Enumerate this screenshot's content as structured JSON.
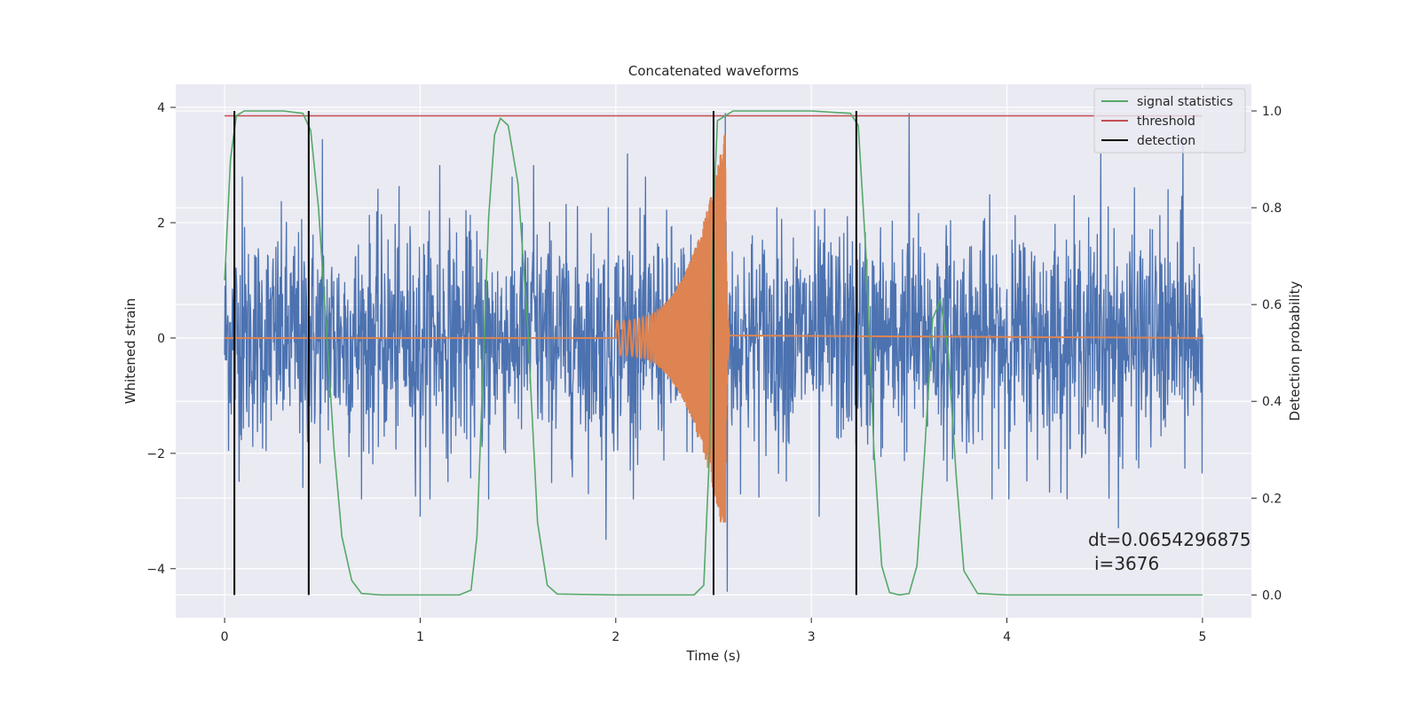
{
  "chart_data": {
    "type": "line",
    "title": "Concatenated waveforms",
    "xlabel": "Time (s)",
    "ylabel": "Whitened strain",
    "y2label": "Detection probability",
    "xlim": [
      -0.25,
      5.25
    ],
    "ylim": [
      -4.85,
      4.4
    ],
    "y2lim": [
      -0.047,
      1.055
    ],
    "xticks": [
      0,
      1,
      2,
      3,
      4,
      5
    ],
    "yticks": [
      -4,
      -2,
      0,
      2,
      4
    ],
    "y2ticks": [
      0.0,
      0.2,
      0.4,
      0.6,
      0.8,
      1.0
    ],
    "xtick_labels": [
      "0",
      "1",
      "2",
      "3",
      "4",
      "5"
    ],
    "ytick_labels": [
      "−4",
      "−2",
      "0",
      "2",
      "4"
    ],
    "y2tick_labels": [
      "0.0",
      "0.2",
      "0.4",
      "0.6",
      "0.8",
      "1.0"
    ],
    "grid": true,
    "legend_position": "top-right",
    "colors": {
      "background": "#eaeaf2",
      "grid": "#ffffff",
      "strain": "#4c72b0",
      "template": "#dd8452",
      "signal_statistics": "#55a868",
      "threshold": "#c44e52",
      "detection": "#000000"
    },
    "series": [
      {
        "name": "signal statistics",
        "axis": "right",
        "x": [
          0.0,
          0.03,
          0.06,
          0.1,
          0.2,
          0.3,
          0.4,
          0.44,
          0.48,
          0.52,
          0.56,
          0.6,
          0.65,
          0.7,
          0.8,
          1.0,
          1.2,
          1.26,
          1.29,
          1.32,
          1.35,
          1.38,
          1.41,
          1.45,
          1.5,
          1.55,
          1.6,
          1.65,
          1.7,
          2.0,
          2.4,
          2.45,
          2.48,
          2.5,
          2.52,
          2.6,
          2.8,
          3.0,
          3.2,
          3.24,
          3.28,
          3.32,
          3.36,
          3.4,
          3.45,
          3.5,
          3.54,
          3.58,
          3.62,
          3.66,
          3.7,
          3.74,
          3.78,
          3.85,
          4.0,
          4.5,
          5.0
        ],
        "values": [
          0.65,
          0.9,
          0.99,
          1.0,
          1.0,
          1.0,
          0.995,
          0.96,
          0.8,
          0.55,
          0.3,
          0.12,
          0.03,
          0.003,
          0.0,
          0.0,
          0.0,
          0.01,
          0.12,
          0.45,
          0.78,
          0.95,
          0.985,
          0.97,
          0.85,
          0.55,
          0.15,
          0.02,
          0.002,
          0.0,
          0.0,
          0.02,
          0.3,
          0.8,
          0.98,
          1.0,
          1.0,
          1.0,
          0.995,
          0.97,
          0.7,
          0.3,
          0.06,
          0.005,
          0.0,
          0.003,
          0.06,
          0.3,
          0.57,
          0.61,
          0.5,
          0.25,
          0.05,
          0.003,
          0.0,
          0.0,
          0.0
        ]
      },
      {
        "name": "threshold",
        "axis": "right",
        "x": [
          0.0,
          5.0
        ],
        "values": [
          0.99,
          0.99
        ]
      },
      {
        "name": "detection",
        "axis": "right",
        "x": [
          0.05,
          0.43,
          2.5,
          3.23
        ],
        "values": [
          1.0,
          1.0,
          1.0,
          1.0
        ]
      },
      {
        "name": "",
        "axis": "left",
        "description_free": true,
        "x_range": [
          0.0,
          5.0
        ],
        "amplitude_envelope": 2.8,
        "peak_values": [
          [
            0.09,
            2.8
          ],
          [
            0.4,
            -2.6
          ],
          [
            0.5,
            3.45
          ],
          [
            1.0,
            -3.1
          ],
          [
            1.1,
            3.0
          ],
          [
            1.35,
            -2.8
          ],
          [
            1.58,
            3.0
          ],
          [
            1.95,
            -3.5
          ],
          [
            2.06,
            3.2
          ],
          [
            2.5,
            -3.6
          ],
          [
            2.56,
            3.9
          ],
          [
            2.57,
            -4.4
          ],
          [
            3.5,
            3.9
          ],
          [
            3.04,
            -3.1
          ],
          [
            4.48,
            3.2
          ],
          [
            4.57,
            -3.3
          ],
          [
            4.9,
            3.5
          ]
        ]
      },
      {
        "name": "",
        "axis": "left",
        "x_range": [
          2.0,
          2.58
        ],
        "chirp_start_amplitude": 0.3,
        "chirp_peak_amplitude": 3.6,
        "chirp_peak_time": 2.56,
        "chirp_min_value": -3.2
      }
    ],
    "annotations": [
      "dt=0.0654296875",
      "i=3676"
    ]
  },
  "legend": {
    "items": [
      "signal statistics",
      "threshold",
      "detection"
    ]
  }
}
